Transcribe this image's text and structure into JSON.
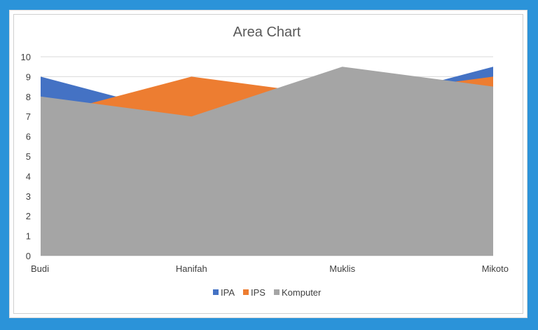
{
  "chart_data": {
    "type": "area",
    "title": "Area Chart",
    "categories": [
      "Budi",
      "Hanifah",
      "Muklis",
      "Mikoto"
    ],
    "series": [
      {
        "name": "IPA",
        "values": [
          9,
          7,
          7.5,
          9.5
        ],
        "color": "#4472c4"
      },
      {
        "name": "IPS",
        "values": [
          7,
          9,
          8,
          9
        ],
        "color": "#ed7d31"
      },
      {
        "name": "Komputer",
        "values": [
          8,
          7,
          9.5,
          8.5
        ],
        "color": "#a5a5a5"
      }
    ],
    "yticks": [
      "0",
      "1",
      "2",
      "3",
      "4",
      "5",
      "6",
      "7",
      "8",
      "9",
      "10"
    ],
    "ylim": [
      0,
      10
    ],
    "grid": true,
    "legend_position": "bottom"
  }
}
